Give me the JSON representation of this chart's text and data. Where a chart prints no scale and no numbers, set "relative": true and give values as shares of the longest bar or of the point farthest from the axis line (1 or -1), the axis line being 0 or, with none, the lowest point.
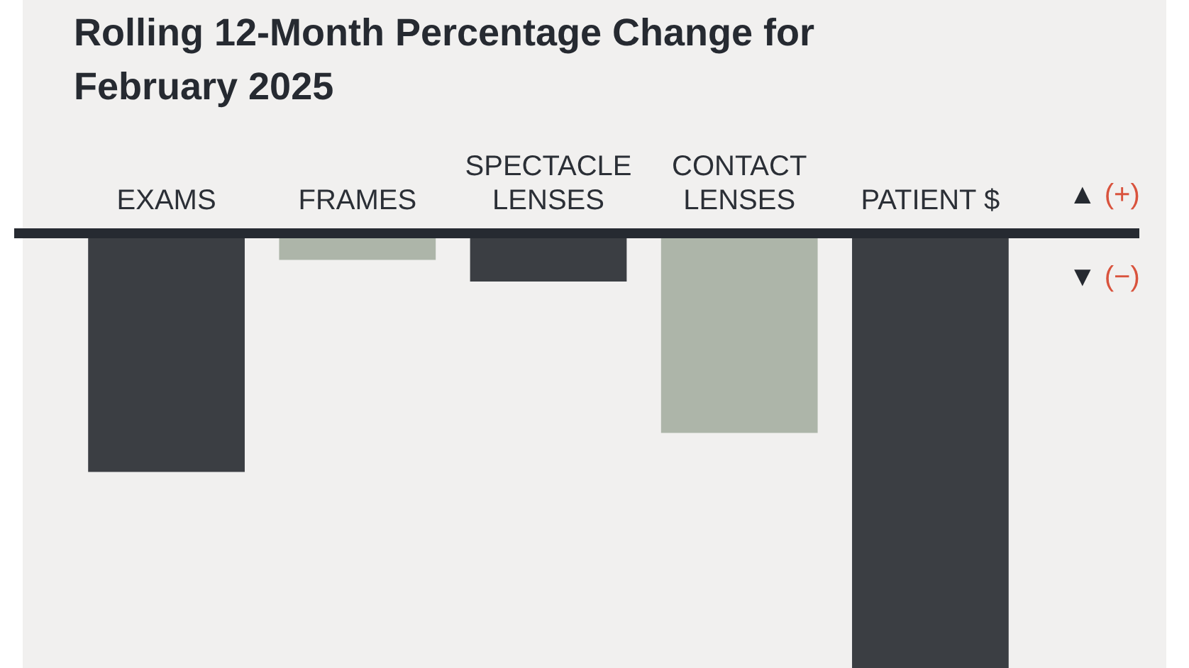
{
  "chart_data": {
    "type": "bar",
    "title": "Rolling 12-Month Percentage Change for February 2025",
    "categories": [
      "EXAMS",
      "FRAMES",
      "SPECTACLE LENSES",
      "CONTACT LENSES",
      "PATIENT $"
    ],
    "values": [
      -0.54,
      -0.05,
      -0.1,
      -0.45,
      -1
    ],
    "colors": [
      "#3b3e43",
      "#adb5a9",
      "#3b3e43",
      "#adb5a9",
      "#3b3e43"
    ],
    "relative": true,
    "grid": false,
    "legend": false,
    "annotations": [
      "▲ (+)",
      "▼ (−)"
    ]
  }
}
